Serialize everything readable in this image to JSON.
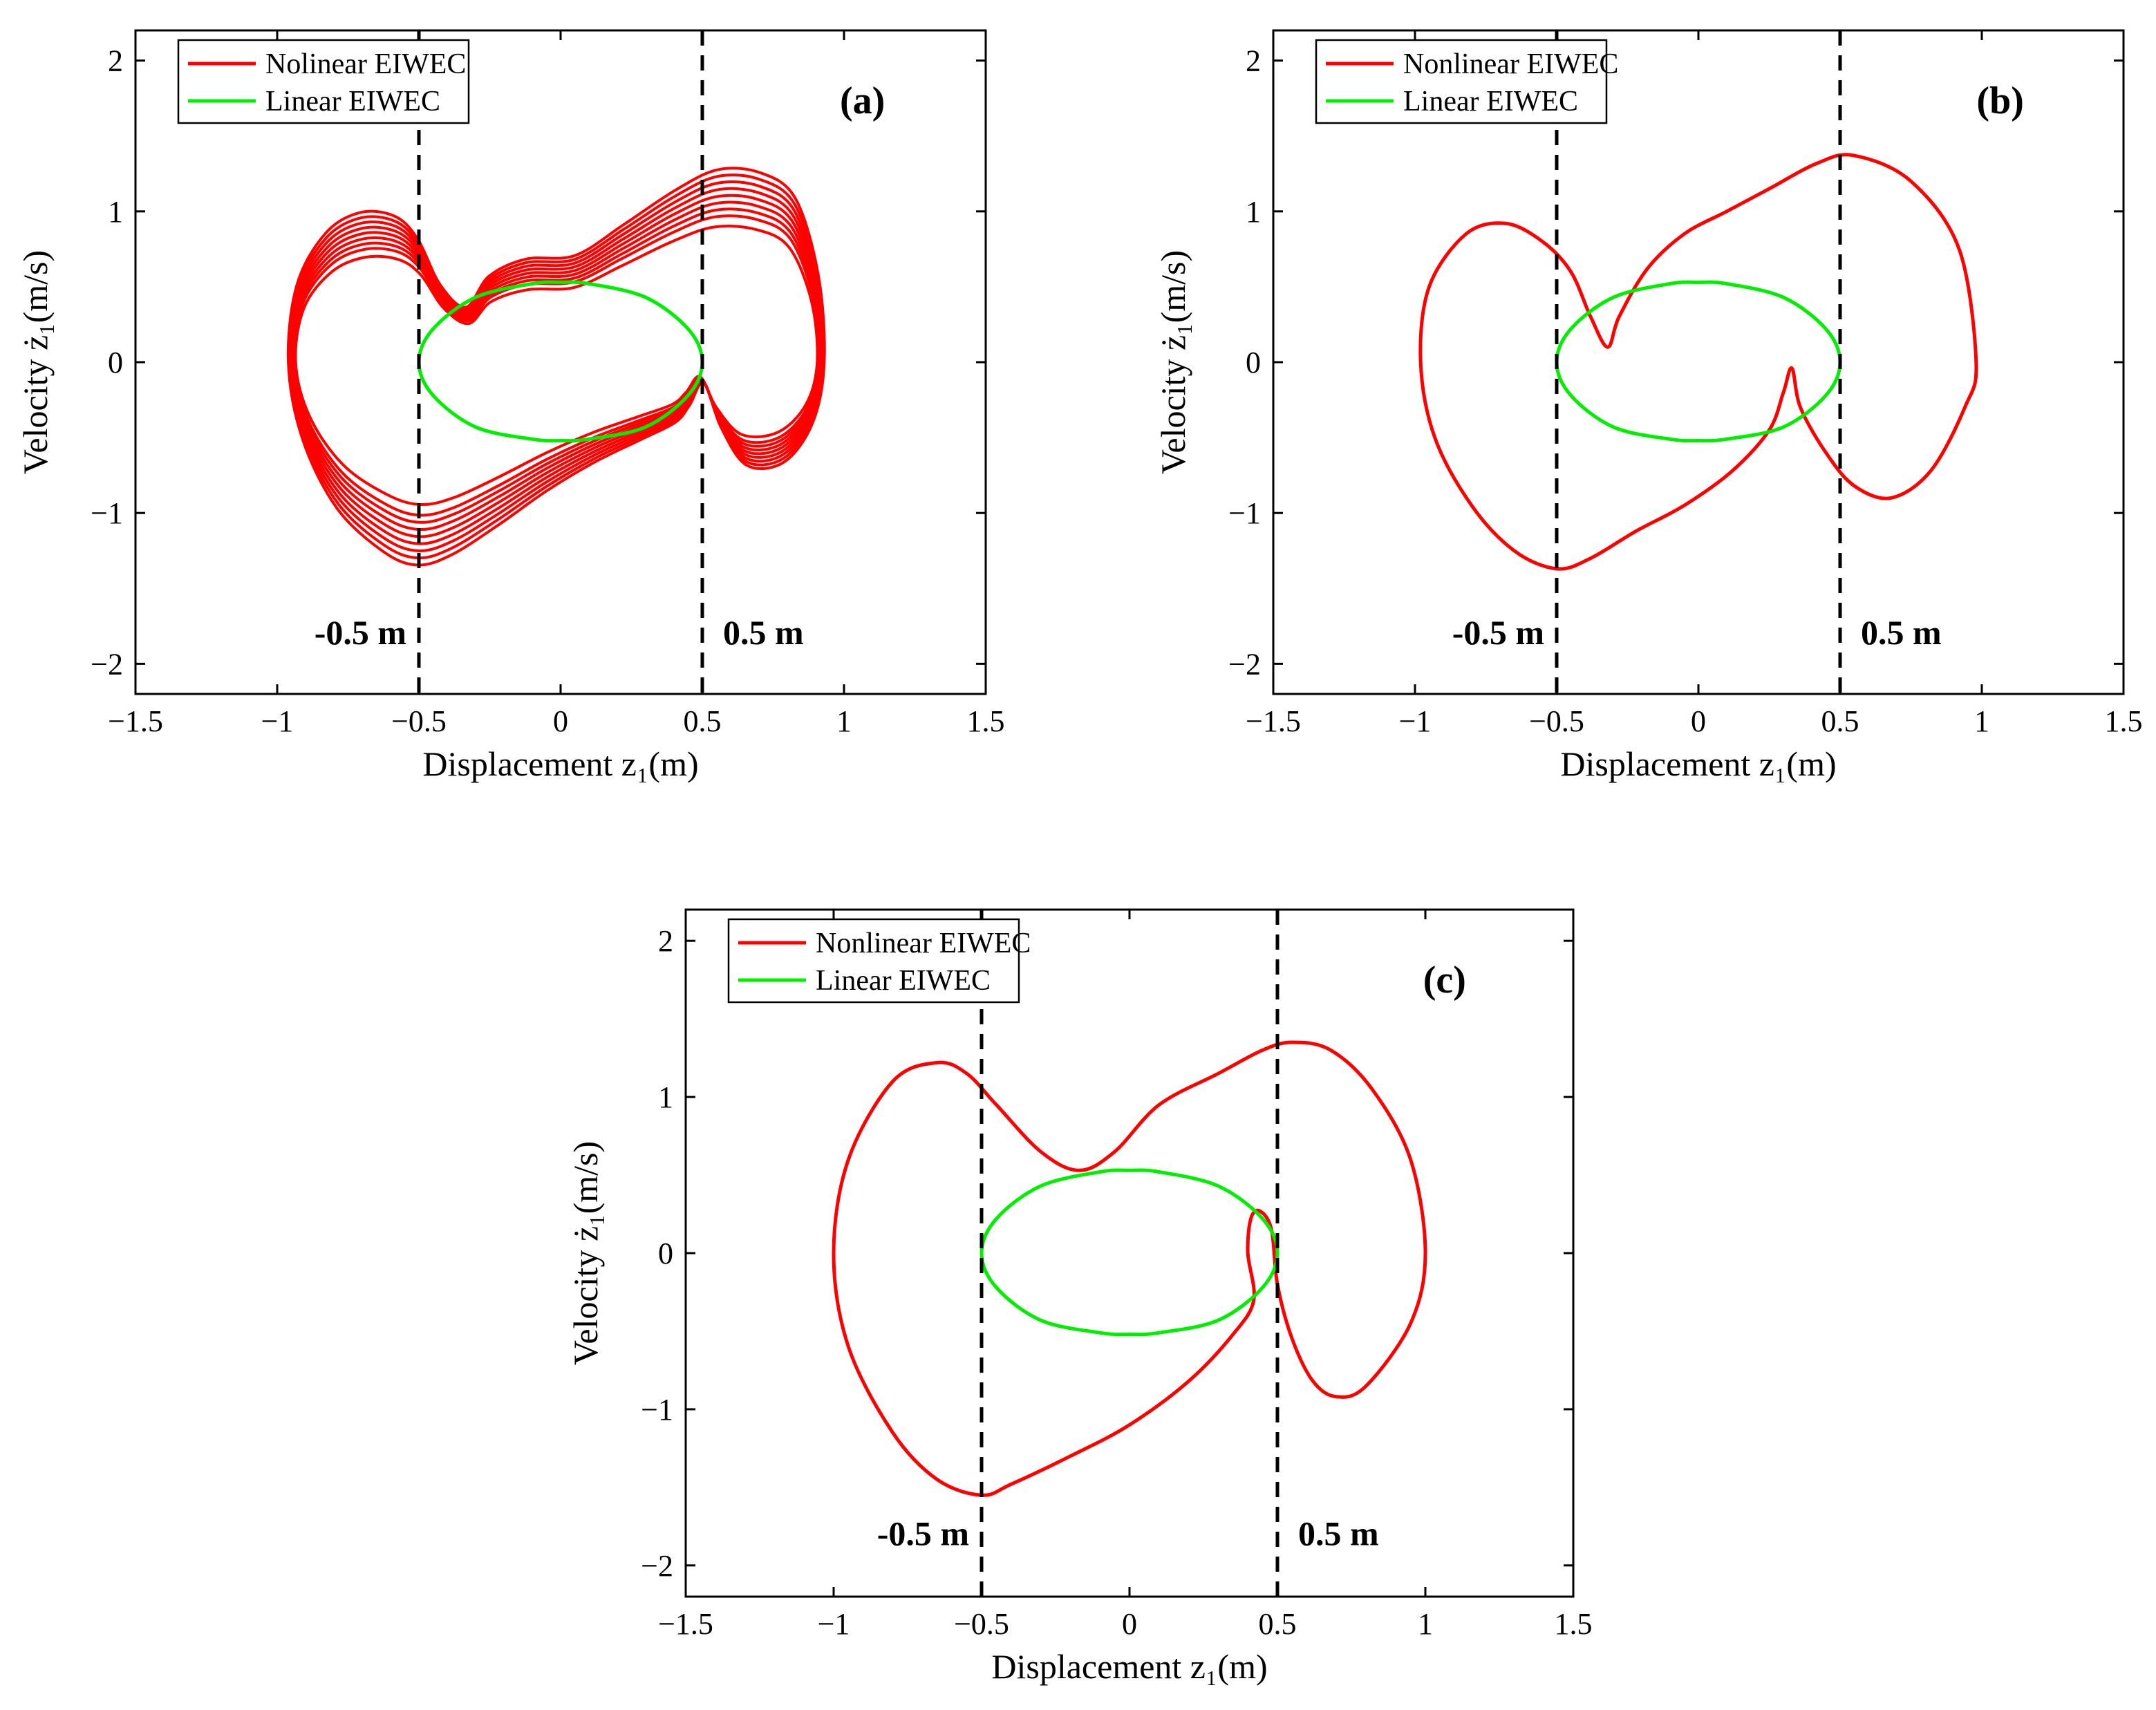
{
  "figure": {
    "panels": [
      "a",
      "b",
      "c"
    ]
  },
  "colors": {
    "nonlinear": "#ff0000",
    "linear": "#00ee00",
    "axis": "#000000",
    "boundary": "#000000"
  },
  "chart_data": [
    {
      "id": "a",
      "type": "line",
      "panel_label": "(a)",
      "xlabel": "Displacement z₁(m)",
      "ylabel": "Velocity ż₁(m/s)",
      "xlim": [
        -1.5,
        1.5
      ],
      "ylim": [
        -2.2,
        2.2
      ],
      "xticks": [
        -1.5,
        -1,
        -0.5,
        0,
        0.5,
        1,
        1.5
      ],
      "xtick_labels": [
        "−1.5",
        "−1",
        "−0.5",
        "0",
        "0.5",
        "1",
        "1.5"
      ],
      "yticks": [
        -2,
        -1,
        0,
        1,
        2
      ],
      "ytick_labels": [
        "−2",
        "−1",
        "0",
        "1",
        "2"
      ],
      "boundaries": [
        -0.5,
        0.5
      ],
      "boundary_labels": [
        "-0.5 m",
        "0.5 m"
      ],
      "legend": [
        "Nolinear EIWEC",
        "Linear EIWEC"
      ],
      "legend_position": "top-left",
      "series": [
        {
          "name": "Nolinear EIWEC",
          "style": "multi-loop",
          "scales": [
            0.8,
            0.86,
            0.9,
            0.94,
            0.98,
            1.02,
            1.06,
            1.1,
            1.14
          ],
          "points": [
            [
              -0.33,
              0.32
            ],
            [
              -0.42,
              0.45
            ],
            [
              -0.5,
              0.72
            ],
            [
              -0.58,
              0.85
            ],
            [
              -0.7,
              0.87
            ],
            [
              -0.82,
              0.75
            ],
            [
              -0.92,
              0.45
            ],
            [
              -0.95,
              0.0
            ],
            [
              -0.9,
              -0.45
            ],
            [
              -0.78,
              -0.85
            ],
            [
              -0.62,
              -1.1
            ],
            [
              -0.5,
              -1.18
            ],
            [
              -0.38,
              -1.12
            ],
            [
              -0.22,
              -0.95
            ],
            [
              -0.05,
              -0.75
            ],
            [
              0.12,
              -0.58
            ],
            [
              0.28,
              -0.45
            ],
            [
              0.4,
              -0.35
            ],
            [
              0.45,
              -0.25
            ],
            [
              0.5,
              -0.12
            ],
            [
              0.56,
              -0.38
            ],
            [
              0.65,
              -0.6
            ],
            [
              0.78,
              -0.58
            ],
            [
              0.88,
              -0.35
            ],
            [
              0.92,
              0.0
            ],
            [
              0.9,
              0.5
            ],
            [
              0.82,
              0.95
            ],
            [
              0.7,
              1.1
            ],
            [
              0.55,
              1.12
            ],
            [
              0.4,
              1.0
            ],
            [
              0.22,
              0.8
            ],
            [
              0.05,
              0.62
            ],
            [
              -0.12,
              0.6
            ],
            [
              -0.25,
              0.5
            ],
            [
              -0.33,
              0.32
            ]
          ]
        },
        {
          "name": "Linear EIWEC",
          "points": [
            [
              -0.5,
              0.0
            ],
            [
              -0.45,
              0.22
            ],
            [
              -0.3,
              0.43
            ],
            [
              -0.1,
              0.52
            ],
            [
              0.0,
              0.53
            ],
            [
              0.1,
              0.52
            ],
            [
              0.3,
              0.43
            ],
            [
              0.45,
              0.22
            ],
            [
              0.5,
              0.0
            ],
            [
              0.45,
              -0.22
            ],
            [
              0.3,
              -0.43
            ],
            [
              0.1,
              -0.51
            ],
            [
              0.0,
              -0.52
            ],
            [
              -0.1,
              -0.51
            ],
            [
              -0.3,
              -0.43
            ],
            [
              -0.45,
              -0.22
            ],
            [
              -0.5,
              0.0
            ]
          ]
        }
      ]
    },
    {
      "id": "b",
      "type": "line",
      "panel_label": "(b)",
      "xlabel": "Displacement z₁(m)",
      "ylabel": "Velocity ż₁(m/s)",
      "xlim": [
        -1.5,
        1.5
      ],
      "ylim": [
        -2.2,
        2.2
      ],
      "xticks": [
        -1.5,
        -1,
        -0.5,
        0,
        0.5,
        1,
        1.5
      ],
      "xtick_labels": [
        "−1.5",
        "−1",
        "−0.5",
        "0",
        "0.5",
        "1",
        "1.5"
      ],
      "yticks": [
        -2,
        -1,
        0,
        1,
        2
      ],
      "ytick_labels": [
        "−2",
        "−1",
        "0",
        "1",
        "2"
      ],
      "boundaries": [
        -0.5,
        0.5
      ],
      "boundary_labels": [
        "-0.5 m",
        "0.5 m"
      ],
      "legend": [
        "Nonlinear EIWEC",
        "Linear EIWEC"
      ],
      "legend_position": "top-left",
      "series": [
        {
          "name": "Nonlinear EIWEC",
          "points": [
            [
              -0.32,
              0.1
            ],
            [
              -0.38,
              0.3
            ],
            [
              -0.45,
              0.6
            ],
            [
              -0.55,
              0.8
            ],
            [
              -0.68,
              0.92
            ],
            [
              -0.82,
              0.85
            ],
            [
              -0.95,
              0.5
            ],
            [
              -0.98,
              0.0
            ],
            [
              -0.93,
              -0.5
            ],
            [
              -0.8,
              -0.95
            ],
            [
              -0.65,
              -1.25
            ],
            [
              -0.5,
              -1.37
            ],
            [
              -0.38,
              -1.3
            ],
            [
              -0.22,
              -1.12
            ],
            [
              -0.05,
              -0.95
            ],
            [
              0.12,
              -0.72
            ],
            [
              0.25,
              -0.45
            ],
            [
              0.3,
              -0.2
            ],
            [
              0.33,
              -0.04
            ],
            [
              0.36,
              -0.3
            ],
            [
              0.45,
              -0.6
            ],
            [
              0.55,
              -0.82
            ],
            [
              0.68,
              -0.9
            ],
            [
              0.82,
              -0.72
            ],
            [
              0.94,
              -0.3
            ],
            [
              0.98,
              0.0
            ],
            [
              0.92,
              0.75
            ],
            [
              0.75,
              1.2
            ],
            [
              0.55,
              1.37
            ],
            [
              0.42,
              1.32
            ],
            [
              0.25,
              1.15
            ],
            [
              0.1,
              1.0
            ],
            [
              -0.05,
              0.85
            ],
            [
              -0.18,
              0.62
            ],
            [
              -0.28,
              0.3
            ],
            [
              -0.32,
              0.1
            ]
          ]
        },
        {
          "name": "Linear EIWEC",
          "points": [
            [
              -0.5,
              0.0
            ],
            [
              -0.45,
              0.22
            ],
            [
              -0.3,
              0.43
            ],
            [
              -0.1,
              0.52
            ],
            [
              0.0,
              0.53
            ],
            [
              0.1,
              0.52
            ],
            [
              0.3,
              0.43
            ],
            [
              0.45,
              0.22
            ],
            [
              0.5,
              0.0
            ],
            [
              0.45,
              -0.22
            ],
            [
              0.3,
              -0.43
            ],
            [
              0.1,
              -0.51
            ],
            [
              0.0,
              -0.52
            ],
            [
              -0.1,
              -0.51
            ],
            [
              -0.3,
              -0.43
            ],
            [
              -0.45,
              -0.22
            ],
            [
              -0.5,
              0.0
            ]
          ]
        }
      ]
    },
    {
      "id": "c",
      "type": "line",
      "panel_label": "(c)",
      "xlabel": "Displacement z₁(m)",
      "ylabel": "Velocity ż₁(m/s)",
      "xlim": [
        -1.5,
        1.5
      ],
      "ylim": [
        -2.2,
        2.2
      ],
      "xticks": [
        -1.5,
        -1,
        -0.5,
        0,
        0.5,
        1,
        1.5
      ],
      "xtick_labels": [
        "−1.5",
        "−1",
        "−0.5",
        "0",
        "0.5",
        "1",
        "1.5"
      ],
      "yticks": [
        -2,
        -1,
        0,
        1,
        2
      ],
      "ytick_labels": [
        "−2",
        "−1",
        "0",
        "1",
        "2"
      ],
      "boundaries": [
        -0.5,
        0.5
      ],
      "boundary_labels": [
        "-0.5 m",
        "0.5 m"
      ],
      "legend": [
        "Nonlinear EIWEC",
        "Linear EIWEC"
      ],
      "legend_position": "top-left",
      "series": [
        {
          "name": "Nonlinear EIWEC",
          "points": [
            [
              -0.17,
              0.53
            ],
            [
              -0.3,
              0.65
            ],
            [
              -0.45,
              0.95
            ],
            [
              -0.55,
              1.15
            ],
            [
              -0.65,
              1.22
            ],
            [
              -0.8,
              1.1
            ],
            [
              -0.95,
              0.6
            ],
            [
              -1.0,
              0.0
            ],
            [
              -0.95,
              -0.6
            ],
            [
              -0.8,
              -1.15
            ],
            [
              -0.65,
              -1.45
            ],
            [
              -0.5,
              -1.55
            ],
            [
              -0.4,
              -1.48
            ],
            [
              -0.2,
              -1.3
            ],
            [
              0.0,
              -1.1
            ],
            [
              0.2,
              -0.82
            ],
            [
              0.35,
              -0.52
            ],
            [
              0.42,
              -0.3
            ],
            [
              0.4,
              0.0
            ],
            [
              0.41,
              0.22
            ],
            [
              0.44,
              0.27
            ],
            [
              0.48,
              0.15
            ],
            [
              0.5,
              -0.2
            ],
            [
              0.55,
              -0.55
            ],
            [
              0.62,
              -0.82
            ],
            [
              0.7,
              -0.92
            ],
            [
              0.8,
              -0.85
            ],
            [
              0.95,
              -0.45
            ],
            [
              1.0,
              0.0
            ],
            [
              0.95,
              0.6
            ],
            [
              0.82,
              1.05
            ],
            [
              0.68,
              1.3
            ],
            [
              0.55,
              1.35
            ],
            [
              0.45,
              1.3
            ],
            [
              0.3,
              1.15
            ],
            [
              0.1,
              0.95
            ],
            [
              -0.05,
              0.65
            ],
            [
              -0.17,
              0.53
            ]
          ]
        },
        {
          "name": "Linear EIWEC",
          "points": [
            [
              -0.5,
              0.0
            ],
            [
              -0.45,
              0.22
            ],
            [
              -0.3,
              0.43
            ],
            [
              -0.1,
              0.52
            ],
            [
              0.0,
              0.53
            ],
            [
              0.1,
              0.52
            ],
            [
              0.3,
              0.43
            ],
            [
              0.45,
              0.22
            ],
            [
              0.5,
              0.0
            ],
            [
              0.45,
              -0.22
            ],
            [
              0.3,
              -0.43
            ],
            [
              0.1,
              -0.51
            ],
            [
              0.0,
              -0.52
            ],
            [
              -0.1,
              -0.51
            ],
            [
              -0.3,
              -0.43
            ],
            [
              -0.45,
              -0.22
            ],
            [
              -0.5,
              0.0
            ]
          ]
        }
      ]
    }
  ]
}
